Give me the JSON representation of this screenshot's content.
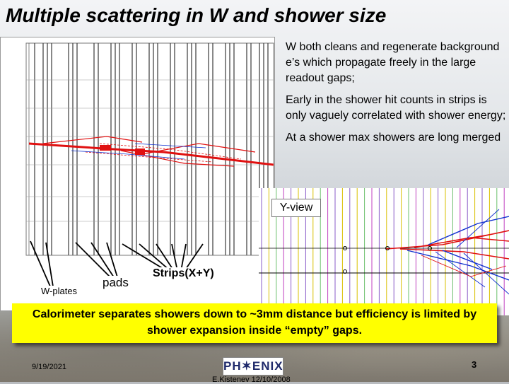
{
  "slide": {
    "title": "Multiple scattering in W and shower size",
    "notes": [
      "W both cleans and regenerate background e’s which propagate freely in the large readout gaps;",
      "Early in the shower hit counts in strips is only vaguely correlated with shower energy;",
      "At a shower max  showers are long merged"
    ],
    "view_label": "Y-view",
    "labels": {
      "w_plates": "W-plates",
      "pads": "pads",
      "strips": "Strips(X+Y)"
    },
    "callout": "Calorimeter separates showers down to ~3mm distance but efficiency is limited by shower expansion inside “empty” gaps.",
    "footer": {
      "date": "9/19/2021",
      "logo": "PH✶ENIX",
      "credit": "E.Kistenev 12/10/2008",
      "page": "3"
    }
  },
  "colors": {
    "callout": "#ffff00",
    "track_red": "#e01010",
    "track_blue": "#1030d0",
    "layer_purple": "#8a5cc8",
    "layer_yellow": "#d8c000"
  }
}
